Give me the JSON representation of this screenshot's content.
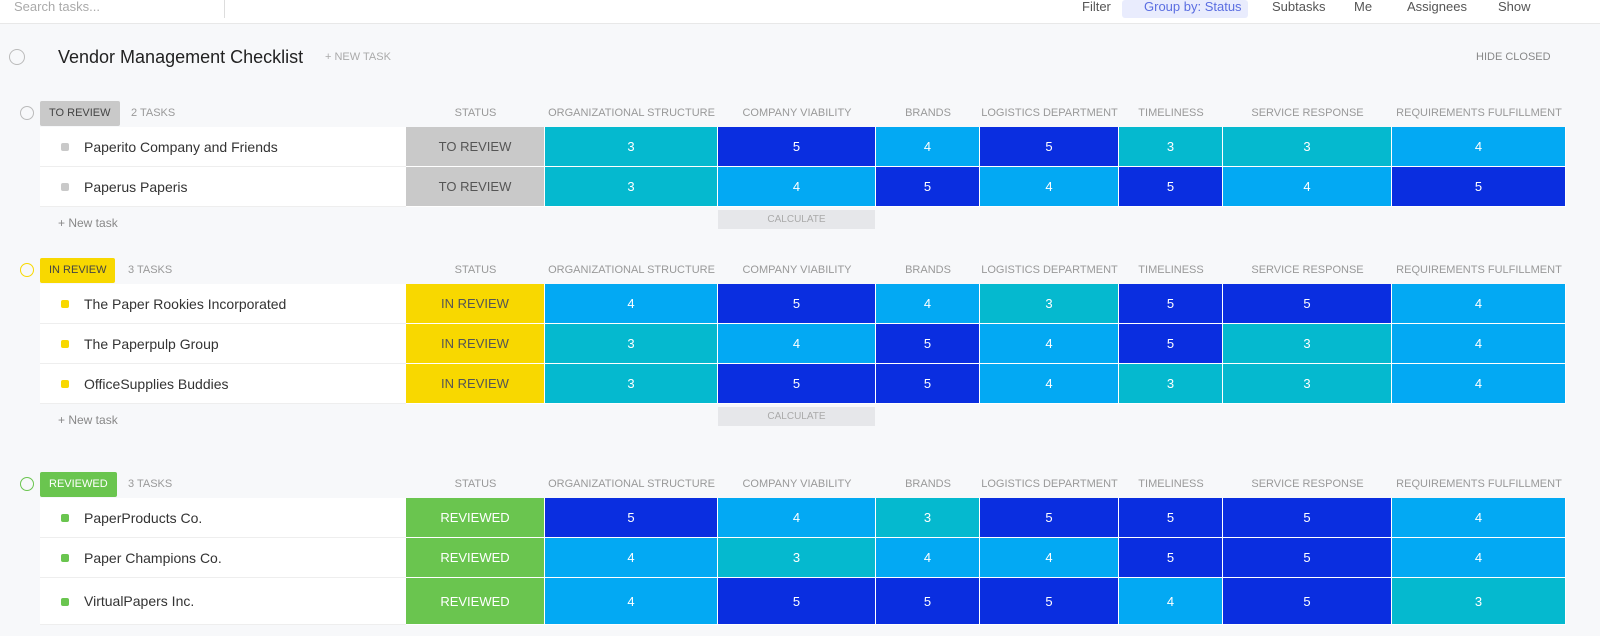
{
  "toolbar": {
    "search_placeholder": "Search tasks...",
    "filter": "Filter",
    "group_by": "Group by: Status",
    "subtasks": "Subtasks",
    "me": "Me",
    "assignees": "Assignees",
    "show": "Show"
  },
  "header": {
    "title": "Vendor Management Checklist",
    "new_task": "+ NEW TASK",
    "hide_closed": "HIDE CLOSED"
  },
  "columns": [
    "STATUS",
    "ORGANIZATIONAL STRUCTURE",
    "COMPANY VIABILITY",
    "BRANDS",
    "LOGISTICS DEPARTMENT",
    "TIMELINESS",
    "SERVICE RESPONSE",
    "REQUIREMENTS FULFILLMENT"
  ],
  "score_colors": {
    "3": "#05b9cf",
    "4": "#03a9f3",
    "5": "#0a2ee0"
  },
  "groups": [
    {
      "status": "TO REVIEW",
      "count": "2 TASKS",
      "color": "#c9c9c9",
      "text_color": "#555555",
      "new_task": "+ New task",
      "calculate": "CALCULATE",
      "rows": [
        {
          "name": "Paperito Company and Friends",
          "status": "TO REVIEW",
          "scores": [
            3,
            5,
            4,
            5,
            3,
            3,
            4
          ]
        },
        {
          "name": "Paperus Paperis",
          "status": "TO REVIEW",
          "scores": [
            3,
            4,
            5,
            4,
            5,
            4,
            5
          ]
        }
      ]
    },
    {
      "status": "IN REVIEW",
      "count": "3 TASKS",
      "color": "#f8d800",
      "text_color": "#555555",
      "new_task": "+ New task",
      "calculate": "CALCULATE",
      "rows": [
        {
          "name": "The Paper Rookies Incorporated",
          "status": "IN REVIEW",
          "scores": [
            4,
            5,
            4,
            3,
            5,
            5,
            4
          ]
        },
        {
          "name": "The Paperpulp Group",
          "status": "IN REVIEW",
          "scores": [
            3,
            4,
            5,
            4,
            5,
            3,
            4
          ]
        },
        {
          "name": "OfficeSupplies Buddies",
          "status": "IN REVIEW",
          "scores": [
            3,
            5,
            5,
            4,
            3,
            3,
            4
          ]
        }
      ]
    },
    {
      "status": "REVIEWED",
      "count": "3 TASKS",
      "color": "#6ac54f",
      "text_color": "#ffffff",
      "rows": [
        {
          "name": "PaperProducts Co.",
          "status": "REVIEWED",
          "scores": [
            5,
            4,
            3,
            5,
            5,
            5,
            4
          ]
        },
        {
          "name": "Paper Champions Co.",
          "status": "REVIEWED",
          "scores": [
            4,
            3,
            4,
            4,
            5,
            5,
            4
          ]
        },
        {
          "name": "VirtualPapers Inc.",
          "status": "REVIEWED",
          "scores": [
            4,
            5,
            5,
            5,
            4,
            5,
            3
          ]
        }
      ]
    }
  ]
}
